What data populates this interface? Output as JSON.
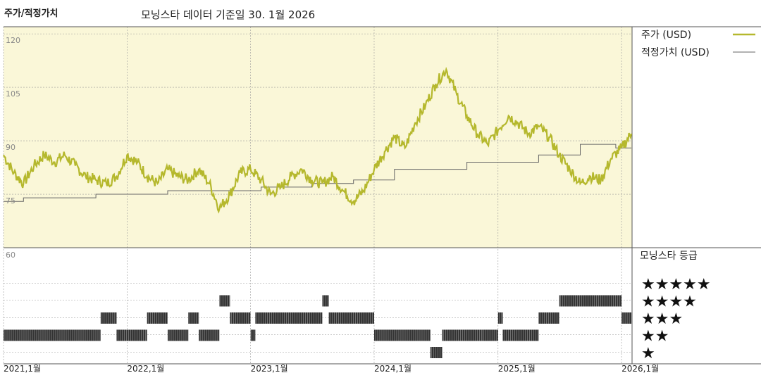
{
  "header": {
    "title": "주가/적정가치",
    "subtitle": "모닝스타 데이터 기준일 30. 1월 2026"
  },
  "colors": {
    "price": "#b5b82d",
    "fair_value": "#666666",
    "plot_bg": "#faf7d8",
    "rating_bar": "#333333"
  },
  "chart_data": [
    {
      "type": "line",
      "title": "주가/적정가치",
      "x_range": [
        "2021-01-01",
        "2026-02-01"
      ],
      "ylim": [
        60,
        122
      ],
      "y_ticks": [
        120,
        105,
        90,
        75
      ],
      "x_ticks": [
        {
          "date": "2021-01-01",
          "label": "2021,1월"
        },
        {
          "date": "2022-01-01",
          "label": "2022,1월"
        },
        {
          "date": "2023-01-01",
          "label": "2023,1월"
        },
        {
          "date": "2024-01-01",
          "label": "2024,1월"
        },
        {
          "date": "2025-01-01",
          "label": "2025,1월"
        },
        {
          "date": "2026-01-01",
          "label": "2026,1월"
        }
      ],
      "series": [
        {
          "name": "주가 (USD)",
          "key": "price",
          "points": [
            [
              "2021-01-01",
              86
            ],
            [
              "2021-02-01",
              81
            ],
            [
              "2021-03-01",
              78
            ],
            [
              "2021-04-01",
              83
            ],
            [
              "2021-05-01",
              86
            ],
            [
              "2021-06-01",
              84
            ],
            [
              "2021-07-01",
              86
            ],
            [
              "2021-08-01",
              83
            ],
            [
              "2021-09-01",
              80
            ],
            [
              "2021-10-01",
              79
            ],
            [
              "2021-11-01",
              78
            ],
            [
              "2021-12-01",
              80
            ],
            [
              "2022-01-01",
              86
            ],
            [
              "2022-02-01",
              84
            ],
            [
              "2022-03-01",
              80
            ],
            [
              "2022-04-01",
              78
            ],
            [
              "2022-05-01",
              82
            ],
            [
              "2022-06-01",
              80
            ],
            [
              "2022-07-01",
              79
            ],
            [
              "2022-08-01",
              82
            ],
            [
              "2022-09-01",
              78
            ],
            [
              "2022-10-01",
              71
            ],
            [
              "2022-11-01",
              75
            ],
            [
              "2022-12-01",
              81
            ],
            [
              "2023-01-01",
              82
            ],
            [
              "2023-02-01",
              79
            ],
            [
              "2023-03-01",
              75
            ],
            [
              "2023-04-01",
              77
            ],
            [
              "2023-05-01",
              80
            ],
            [
              "2023-06-01",
              82
            ],
            [
              "2023-07-01",
              79
            ],
            [
              "2023-08-01",
              78
            ],
            [
              "2023-09-01",
              80
            ],
            [
              "2023-10-01",
              76
            ],
            [
              "2023-11-01",
              73
            ],
            [
              "2023-12-01",
              76
            ],
            [
              "2024-01-01",
              82
            ],
            [
              "2024-02-01",
              87
            ],
            [
              "2024-03-01",
              91
            ],
            [
              "2024-04-01",
              88
            ],
            [
              "2024-05-01",
              95
            ],
            [
              "2024-06-01",
              100
            ],
            [
              "2024-07-01",
              106
            ],
            [
              "2024-08-01",
              110
            ],
            [
              "2024-09-01",
              103
            ],
            [
              "2024-10-01",
              97
            ],
            [
              "2024-11-01",
              92
            ],
            [
              "2024-12-01",
              89
            ],
            [
              "2025-01-01",
              93
            ],
            [
              "2025-02-01",
              97
            ],
            [
              "2025-03-01",
              95
            ],
            [
              "2025-04-01",
              92
            ],
            [
              "2025-05-01",
              94
            ],
            [
              "2025-06-01",
              91
            ],
            [
              "2025-07-01",
              86
            ],
            [
              "2025-08-01",
              82
            ],
            [
              "2025-09-01",
              78
            ],
            [
              "2025-10-01",
              80
            ],
            [
              "2025-11-01",
              79
            ],
            [
              "2025-12-01",
              85
            ],
            [
              "2026-01-01",
              88
            ],
            [
              "2026-01-30",
              92
            ]
          ]
        },
        {
          "name": "적정가치 (USD)",
          "key": "fair_value",
          "points": [
            [
              "2021-01-01",
              73
            ],
            [
              "2021-03-01",
              74
            ],
            [
              "2021-10-01",
              75
            ],
            [
              "2022-05-01",
              76
            ],
            [
              "2023-02-01",
              77
            ],
            [
              "2023-07-01",
              78
            ],
            [
              "2023-11-01",
              79
            ],
            [
              "2024-03-01",
              82
            ],
            [
              "2024-10-01",
              84
            ],
            [
              "2025-05-01",
              86
            ],
            [
              "2025-09-01",
              89
            ],
            [
              "2025-12-15",
              88
            ],
            [
              "2026-01-30",
              88
            ]
          ]
        }
      ]
    },
    {
      "type": "heatmap",
      "title": "모닝스타 등급",
      "ylim": [
        0,
        60
      ],
      "y_ticks": [
        60
      ],
      "levels": [
        "★★★★★",
        "★★★★",
        "★★★",
        "★★",
        "★"
      ],
      "ratings": [
        [
          "2021-01-01",
          "2021-10-15",
          2
        ],
        [
          "2021-10-15",
          "2021-12-01",
          3
        ],
        [
          "2021-12-01",
          "2022-03-01",
          2
        ],
        [
          "2022-03-01",
          "2022-05-01",
          3
        ],
        [
          "2022-05-01",
          "2022-07-01",
          2
        ],
        [
          "2022-07-01",
          "2022-08-01",
          3
        ],
        [
          "2022-08-01",
          "2022-10-01",
          2
        ],
        [
          "2022-10-01",
          "2022-11-01",
          4
        ],
        [
          "2022-11-01",
          "2023-01-01",
          3
        ],
        [
          "2023-01-01",
          "2023-01-15",
          2
        ],
        [
          "2023-01-15",
          "2023-08-01",
          3
        ],
        [
          "2023-08-01",
          "2023-08-20",
          4
        ],
        [
          "2023-08-20",
          "2024-01-01",
          3
        ],
        [
          "2024-01-01",
          "2024-06-15",
          2
        ],
        [
          "2024-06-15",
          "2024-07-20",
          1
        ],
        [
          "2024-07-20",
          "2024-11-15",
          2
        ],
        [
          "2024-11-15",
          "2025-01-01",
          2
        ],
        [
          "2025-01-01",
          "2025-01-15",
          3
        ],
        [
          "2025-01-15",
          "2025-05-01",
          2
        ],
        [
          "2025-05-01",
          "2025-07-01",
          3
        ],
        [
          "2025-07-01",
          "2026-01-01",
          4
        ],
        [
          "2026-01-01",
          "2026-01-30",
          3
        ]
      ]
    }
  ]
}
